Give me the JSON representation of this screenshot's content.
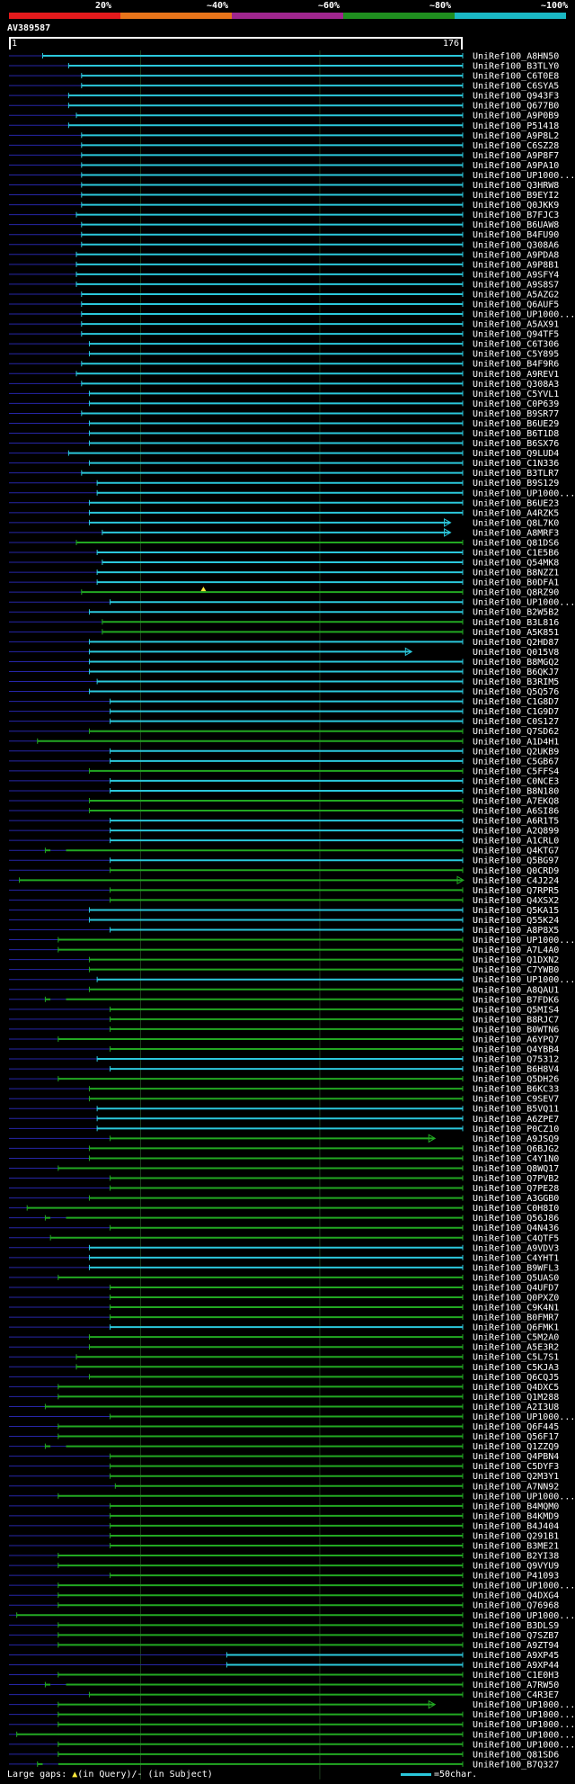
{
  "scale_bar": {
    "segments": [
      {
        "label": "20%",
        "color": "#e41a1c"
      },
      {
        "label": "~40%",
        "color": "#e8741a"
      },
      {
        "label": "~60%",
        "color": "#a0268e"
      },
      {
        "label": "~80%",
        "color": "#1f8f1f"
      },
      {
        "label": "~100%",
        "color": "#1ab8c4"
      }
    ]
  },
  "query": {
    "id": "AV389587",
    "start": "1",
    "end": "176"
  },
  "footer": {
    "gaps_label": "Large gaps: ",
    "gaps_query": "(in Query)/",
    "gaps_subject": "- (in Subject)",
    "scale_key": "=50char."
  },
  "colors": {
    "cyan": "#2bc8dc",
    "green": "#22a822",
    "blue": "#2626a8"
  },
  "hits": [
    {
      "id": "UniRef100_A8HN50",
      "s": 14,
      "c": "c"
    },
    {
      "id": "UniRef100_B3TLY0",
      "s": 24,
      "c": "c"
    },
    {
      "id": "UniRef100_C6T0E8",
      "s": 29,
      "c": "c"
    },
    {
      "id": "UniRef100_C6SYA5",
      "s": 29,
      "c": "c"
    },
    {
      "id": "UniRef100_Q943F3",
      "s": 24,
      "c": "c"
    },
    {
      "id": "UniRef100_Q677B0",
      "s": 24,
      "c": "c"
    },
    {
      "id": "UniRef100_A9P0B9",
      "s": 27,
      "c": "c"
    },
    {
      "id": "UniRef100_P51418",
      "s": 24,
      "c": "c"
    },
    {
      "id": "UniRef100_A9P8L2",
      "s": 29,
      "c": "c"
    },
    {
      "id": "UniRef100_C6SZ28",
      "s": 29,
      "c": "c"
    },
    {
      "id": "UniRef100_A9P8F7",
      "s": 29,
      "c": "c"
    },
    {
      "id": "UniRef100_A9PA10",
      "s": 29,
      "c": "c"
    },
    {
      "id": "UniRef100_UP1000...",
      "s": 29,
      "c": "c"
    },
    {
      "id": "UniRef100_Q3HRW8",
      "s": 29,
      "c": "c"
    },
    {
      "id": "UniRef100_B9EYI2",
      "s": 29,
      "c": "c"
    },
    {
      "id": "UniRef100_Q0JKK9",
      "s": 29,
      "c": "c"
    },
    {
      "id": "UniRef100_B7FJC3",
      "s": 27,
      "c": "c"
    },
    {
      "id": "UniRef100_B6UAW8",
      "s": 29,
      "c": "c"
    },
    {
      "id": "UniRef100_B4FU90",
      "s": 29,
      "c": "c"
    },
    {
      "id": "UniRef100_Q308A6",
      "s": 29,
      "c": "c"
    },
    {
      "id": "UniRef100_A9PDA8",
      "s": 27,
      "c": "c"
    },
    {
      "id": "UniRef100_A9P8B1",
      "s": 27,
      "c": "c"
    },
    {
      "id": "UniRef100_A9SFY4",
      "s": 27,
      "c": "c"
    },
    {
      "id": "UniRef100_A9S8S7",
      "s": 27,
      "c": "c"
    },
    {
      "id": "UniRef100_A5AZG2",
      "s": 29,
      "c": "c"
    },
    {
      "id": "UniRef100_Q6AUF5",
      "s": 29,
      "c": "c"
    },
    {
      "id": "UniRef100_UP1000...",
      "s": 29,
      "c": "c"
    },
    {
      "id": "UniRef100_A5AX91",
      "s": 29,
      "c": "c"
    },
    {
      "id": "UniRef100_Q94TF5",
      "s": 29,
      "c": "c"
    },
    {
      "id": "UniRef100_C6T306",
      "s": 32,
      "c": "c"
    },
    {
      "id": "UniRef100_C5Y895",
      "s": 32,
      "c": "c"
    },
    {
      "id": "UniRef100_B4F9R6",
      "s": 29,
      "c": "c"
    },
    {
      "id": "UniRef100_A9REV1",
      "s": 27,
      "c": "c"
    },
    {
      "id": "UniRef100_Q308A3",
      "s": 29,
      "c": "c"
    },
    {
      "id": "UniRef100_C5YVL1",
      "s": 32,
      "c": "c"
    },
    {
      "id": "UniRef100_C0P639",
      "s": 32,
      "c": "c"
    },
    {
      "id": "UniRef100_B9SR77",
      "s": 29,
      "c": "c"
    },
    {
      "id": "UniRef100_B6UE29",
      "s": 32,
      "c": "c"
    },
    {
      "id": "UniRef100_B6T1D8",
      "s": 32,
      "c": "c"
    },
    {
      "id": "UniRef100_B6SX76",
      "s": 32,
      "c": "c"
    },
    {
      "id": "UniRef100_Q9LUD4",
      "s": 24,
      "c": "c"
    },
    {
      "id": "UniRef100_C1N336",
      "s": 32,
      "c": "c"
    },
    {
      "id": "UniRef100_B3TLR7",
      "s": 29,
      "c": "c"
    },
    {
      "id": "UniRef100_B9S129",
      "s": 35,
      "c": "c"
    },
    {
      "id": "UniRef100_UP1000...",
      "s": 35,
      "c": "c"
    },
    {
      "id": "UniRef100_B6UE23",
      "s": 32,
      "c": "c"
    },
    {
      "id": "UniRef100_A4RZK5",
      "s": 32,
      "c": "c"
    },
    {
      "id": "UniRef100_Q8L7K0",
      "s": 32,
      "e": 171,
      "c": "c",
      "a": 1
    },
    {
      "id": "UniRef100_A8MRF3",
      "s": 37,
      "e": 171,
      "c": "c",
      "a": 1
    },
    {
      "id": "UniRef100_Q81DS6",
      "s": 27,
      "c": "g"
    },
    {
      "id": "UniRef100_C1E5B6",
      "s": 35,
      "c": "c"
    },
    {
      "id": "UniRef100_Q54MK8",
      "s": 37,
      "c": "c"
    },
    {
      "id": "UniRef100_B8NZZ1",
      "s": 35,
      "c": "c"
    },
    {
      "id": "UniRef100_B0DFA1",
      "s": 35,
      "c": "c"
    },
    {
      "id": "UniRef100_Q8RZ90",
      "s": 29,
      "c": "g",
      "gapq": 76
    },
    {
      "id": "UniRef100_UP1000...",
      "s": 40,
      "c": "c"
    },
    {
      "id": "UniRef100_B2W5B2",
      "s": 32,
      "c": "c"
    },
    {
      "id": "UniRef100_B3L816",
      "s": 37,
      "c": "g"
    },
    {
      "id": "UniRef100_A5K851",
      "s": 37,
      "c": "g"
    },
    {
      "id": "UniRef100_Q2HD87",
      "s": 32,
      "c": "c"
    },
    {
      "id": "UniRef100_Q015V8",
      "s": 32,
      "e": 156,
      "c": "c",
      "a": 1
    },
    {
      "id": "UniRef100_B8MGQ2",
      "s": 32,
      "c": "c"
    },
    {
      "id": "UniRef100_B6QKJ7",
      "s": 32,
      "c": "c"
    },
    {
      "id": "UniRef100_B3RIM5",
      "s": 35,
      "c": "c"
    },
    {
      "id": "UniRef100_Q5Q576",
      "s": 32,
      "c": "c"
    },
    {
      "id": "UniRef100_C1G8D7",
      "s": 40,
      "c": "c"
    },
    {
      "id": "UniRef100_C1G9D7",
      "s": 40,
      "c": "c"
    },
    {
      "id": "UniRef100_C0S127",
      "s": 40,
      "c": "c"
    },
    {
      "id": "UniRef100_Q7SD62",
      "s": 32,
      "c": "g"
    },
    {
      "id": "UniRef100_A1D4H1",
      "s": 12,
      "c": "g"
    },
    {
      "id": "UniRef100_Q2UKB9",
      "s": 40,
      "c": "c"
    },
    {
      "id": "UniRef100_C5GB67",
      "s": 40,
      "c": "c"
    },
    {
      "id": "UniRef100_C5FFS4",
      "s": 32,
      "c": "g"
    },
    {
      "id": "UniRef100_C0NCE3",
      "s": 40,
      "c": "c"
    },
    {
      "id": "UniRef100_B8N180",
      "s": 40,
      "c": "c"
    },
    {
      "id": "UniRef100_A7EKQ8",
      "s": 32,
      "c": "g"
    },
    {
      "id": "UniRef100_A6SI86",
      "s": 32,
      "c": "g"
    },
    {
      "id": "UniRef100_A6R1T5",
      "s": 40,
      "c": "c"
    },
    {
      "id": "UniRef100_A2Q899",
      "s": 40,
      "c": "c"
    },
    {
      "id": "UniRef100_A1CRL0",
      "s": 40,
      "c": "c"
    },
    {
      "id": "UniRef100_Q4KTG7",
      "s": 15,
      "c": "g",
      "gaps": [
        17,
        23
      ]
    },
    {
      "id": "UniRef100_Q5BG97",
      "s": 40,
      "c": "c"
    },
    {
      "id": "UniRef100_Q0CRD9",
      "s": 40,
      "c": "g"
    },
    {
      "id": "UniRef100_C4J224",
      "s": 5,
      "c": "g",
      "a": 1
    },
    {
      "id": "UniRef100_Q7RPR5",
      "s": 40,
      "c": "g"
    },
    {
      "id": "UniRef100_Q4XSX2",
      "s": 40,
      "c": "g"
    },
    {
      "id": "UniRef100_Q5KA15",
      "s": 32,
      "c": "c"
    },
    {
      "id": "UniRef100_Q55K24",
      "s": 32,
      "c": "c"
    },
    {
      "id": "UniRef100_A8P8X5",
      "s": 40,
      "c": "c"
    },
    {
      "id": "UniRef100_UP1000...",
      "s": 20,
      "c": "g"
    },
    {
      "id": "UniRef100_A7L4A0",
      "s": 20,
      "c": "g"
    },
    {
      "id": "UniRef100_Q1DXN2",
      "s": 32,
      "c": "g"
    },
    {
      "id": "UniRef100_C7YWB0",
      "s": 32,
      "c": "g"
    },
    {
      "id": "UniRef100_UP1000...",
      "s": 35,
      "c": "c"
    },
    {
      "id": "UniRef100_A8QAU1",
      "s": 32,
      "c": "g"
    },
    {
      "id": "UniRef100_B7FDK6",
      "s": 15,
      "c": "g",
      "gaps": [
        17,
        23
      ]
    },
    {
      "id": "UniRef100_Q5MIS4",
      "s": 40,
      "c": "g"
    },
    {
      "id": "UniRef100_B8RJC7",
      "s": 40,
      "c": "g"
    },
    {
      "id": "UniRef100_B0WTN6",
      "s": 40,
      "c": "g"
    },
    {
      "id": "UniRef100_A6YPQ7",
      "s": 20,
      "c": "g"
    },
    {
      "id": "UniRef100_Q4YBB4",
      "s": 40,
      "c": "g"
    },
    {
      "id": "UniRef100_Q75312",
      "s": 35,
      "c": "c"
    },
    {
      "id": "UniRef100_B6H8V4",
      "s": 40,
      "c": "c"
    },
    {
      "id": "UniRef100_Q5DH26",
      "s": 20,
      "c": "g"
    },
    {
      "id": "UniRef100_B6KC33",
      "s": 32,
      "c": "g"
    },
    {
      "id": "UniRef100_C9SEV7",
      "s": 32,
      "c": "g"
    },
    {
      "id": "UniRef100_B5VQ11",
      "s": 35,
      "c": "c"
    },
    {
      "id": "UniRef100_A6ZPE7",
      "s": 35,
      "c": "c"
    },
    {
      "id": "UniRef100_P0CZ10",
      "s": 35,
      "c": "c"
    },
    {
      "id": "UniRef100_A9JSQ9",
      "s": 40,
      "e": 165,
      "c": "g",
      "a": 1
    },
    {
      "id": "UniRef100_Q6BJG2",
      "s": 32,
      "c": "g"
    },
    {
      "id": "UniRef100_C4Y1N0",
      "s": 32,
      "c": "g"
    },
    {
      "id": "UniRef100_Q8WQ17",
      "s": 20,
      "c": "g"
    },
    {
      "id": "UniRef100_Q7PVB2",
      "s": 40,
      "c": "g"
    },
    {
      "id": "UniRef100_Q7PE28",
      "s": 40,
      "c": "g"
    },
    {
      "id": "UniRef100_A3GGB0",
      "s": 32,
      "c": "g"
    },
    {
      "id": "UniRef100_C0H8I0",
      "s": 8,
      "c": "g"
    },
    {
      "id": "UniRef100_Q56J86",
      "s": 15,
      "c": "g",
      "gaps": [
        17,
        23
      ]
    },
    {
      "id": "UniRef100_Q4N436",
      "s": 40,
      "c": "g"
    },
    {
      "id": "UniRef100_C4QTF5",
      "s": 17,
      "c": "g"
    },
    {
      "id": "UniRef100_A9VDV3",
      "s": 32,
      "c": "c"
    },
    {
      "id": "UniRef100_C4YHT1",
      "s": 32,
      "c": "c"
    },
    {
      "id": "UniRef100_B9WFL3",
      "s": 32,
      "c": "c"
    },
    {
      "id": "UniRef100_Q5UAS0",
      "s": 20,
      "c": "g"
    },
    {
      "id": "UniRef100_Q4UFD7",
      "s": 40,
      "c": "g"
    },
    {
      "id": "UniRef100_Q0PXZ0",
      "s": 40,
      "c": "g"
    },
    {
      "id": "UniRef100_C9K4N1",
      "s": 40,
      "c": "g"
    },
    {
      "id": "UniRef100_B0FMR7",
      "s": 40,
      "c": "g"
    },
    {
      "id": "UniRef100_Q6FMK1",
      "s": 40,
      "c": "c"
    },
    {
      "id": "UniRef100_C5M2A0",
      "s": 32,
      "c": "g"
    },
    {
      "id": "UniRef100_A5E3R2",
      "s": 32,
      "c": "g"
    },
    {
      "id": "UniRef100_C5L7S1",
      "s": 27,
      "c": "g"
    },
    {
      "id": "UniRef100_C5KJA3",
      "s": 27,
      "c": "g"
    },
    {
      "id": "UniRef100_Q6CQJ5",
      "s": 32,
      "c": "g"
    },
    {
      "id": "UniRef100_Q4DXC5",
      "s": 20,
      "c": "g"
    },
    {
      "id": "UniRef100_Q1M288",
      "s": 20,
      "c": "g"
    },
    {
      "id": "UniRef100_A2I3U8",
      "s": 15,
      "c": "g"
    },
    {
      "id": "UniRef100_UP1000...",
      "s": 40,
      "c": "g"
    },
    {
      "id": "UniRef100_Q6F445",
      "s": 20,
      "c": "g"
    },
    {
      "id": "UniRef100_Q56F17",
      "s": 20,
      "c": "g"
    },
    {
      "id": "UniRef100_Q1ZZQ9",
      "s": 15,
      "c": "g",
      "gaps": [
        17,
        23
      ]
    },
    {
      "id": "UniRef100_Q4PBN4",
      "s": 40,
      "c": "g"
    },
    {
      "id": "UniRef100_C5DYF3",
      "s": 40,
      "c": "g"
    },
    {
      "id": "UniRef100_Q2M3Y1",
      "s": 40,
      "c": "g"
    },
    {
      "id": "UniRef100_A7NN92",
      "s": 42,
      "c": "g"
    },
    {
      "id": "UniRef100_UP1000...",
      "s": 20,
      "c": "g"
    },
    {
      "id": "UniRef100_B4MQM0",
      "s": 40,
      "c": "g"
    },
    {
      "id": "UniRef100_B4KMD9",
      "s": 40,
      "c": "g"
    },
    {
      "id": "UniRef100_B4J404",
      "s": 40,
      "c": "g"
    },
    {
      "id": "UniRef100_Q291B1",
      "s": 40,
      "c": "g"
    },
    {
      "id": "UniRef100_B3ME21",
      "s": 40,
      "c": "g"
    },
    {
      "id": "UniRef100_B2YI38",
      "s": 20,
      "c": "g"
    },
    {
      "id": "UniRef100_Q9VYU9",
      "s": 20,
      "c": "g"
    },
    {
      "id": "UniRef100_P41093",
      "s": 40,
      "c": "g"
    },
    {
      "id": "UniRef100_UP1000...",
      "s": 20,
      "c": "g"
    },
    {
      "id": "UniRef100_Q4DXG4",
      "s": 20,
      "c": "g"
    },
    {
      "id": "UniRef100_Q76968",
      "s": 20,
      "c": "g"
    },
    {
      "id": "UniRef100_UP1000...",
      "s": 4,
      "c": "g"
    },
    {
      "id": "UniRef100_B3DLS9",
      "s": 20,
      "c": "g"
    },
    {
      "id": "UniRef100_Q7SZB7",
      "s": 20,
      "c": "g"
    },
    {
      "id": "UniRef100_A9ZT94",
      "s": 20,
      "c": "g"
    },
    {
      "id": "UniRef100_A9XP45",
      "s": 85,
      "c": "c"
    },
    {
      "id": "UniRef100_A9XP44",
      "s": 85,
      "c": "c"
    },
    {
      "id": "UniRef100_C1E0H3",
      "s": 20,
      "c": "g"
    },
    {
      "id": "UniRef100_A7RW50",
      "s": 15,
      "c": "g",
      "gaps": [
        17,
        23
      ]
    },
    {
      "id": "UniRef100_C4R3E7",
      "s": 32,
      "c": "g"
    },
    {
      "id": "UniRef100_UP1000...",
      "s": 20,
      "e": 165,
      "c": "g",
      "a": 1
    },
    {
      "id": "UniRef100_UP1000...",
      "s": 20,
      "c": "g"
    },
    {
      "id": "UniRef100_UP1000...",
      "s": 20,
      "c": "g"
    },
    {
      "id": "UniRef100_UP1000...",
      "s": 4,
      "c": "g"
    },
    {
      "id": "UniRef100_UP1000...",
      "s": 20,
      "c": "g"
    },
    {
      "id": "UniRef100_Q81SD6",
      "s": 20,
      "c": "g"
    },
    {
      "id": "UniRef100_B7Q327",
      "s": 12,
      "c": "g",
      "gaps": [
        14,
        20
      ]
    }
  ]
}
